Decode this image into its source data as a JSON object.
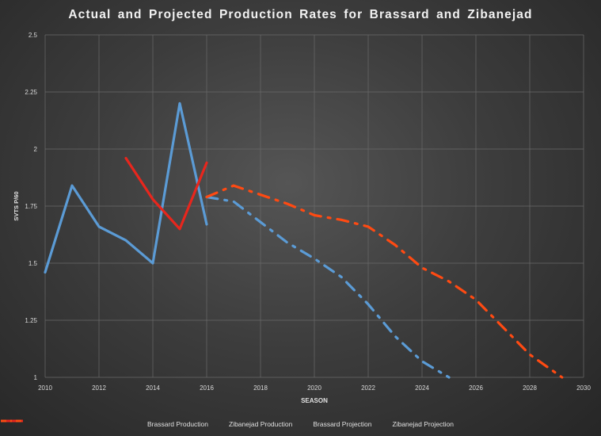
{
  "chart_data": {
    "type": "line",
    "title": "Actual and Projected Production Rates for Brassard and Zibanejad",
    "xlabel": "SEASON",
    "ylabel": "SVTS P/60",
    "xlim": [
      2010,
      2030
    ],
    "ylim": [
      1,
      2.5
    ],
    "xticks": [
      "2010",
      "2012",
      "2014",
      "2016",
      "2018",
      "2020",
      "2022",
      "2024",
      "2026",
      "2028",
      "2030"
    ],
    "yticks": [
      "1",
      "1.25",
      "1.5",
      "1.75",
      "2",
      "2.25",
      "2.5"
    ],
    "grid": true,
    "legend_position": "bottom",
    "series": [
      {
        "name": "Brassard Production",
        "color": "#5b9bd5",
        "style": "solid",
        "x": [
          2010,
          2011,
          2012,
          2013,
          2014,
          2015,
          2016
        ],
        "y": [
          1.46,
          1.84,
          1.66,
          1.6,
          1.5,
          2.2,
          1.67
        ]
      },
      {
        "name": "Zibanejad Production",
        "color": "#e8261d",
        "style": "solid",
        "x": [
          2013,
          2014,
          2015,
          2016
        ],
        "y": [
          1.96,
          1.78,
          1.65,
          1.94
        ]
      },
      {
        "name": "Brassard Projection",
        "color": "#5b9bd5",
        "style": "dashdot",
        "x": [
          2016,
          2017,
          2018,
          2019,
          2020,
          2021,
          2022,
          2023,
          2024,
          2025
        ],
        "y": [
          1.79,
          1.77,
          1.68,
          1.59,
          1.52,
          1.44,
          1.32,
          1.18,
          1.07,
          1.0
        ]
      },
      {
        "name": "Zibanejad Projection",
        "color": "#ff4a12",
        "style": "dashdot",
        "x": [
          2016,
          2017,
          2018,
          2019,
          2020,
          2021,
          2022,
          2023,
          2024,
          2025,
          2026,
          2027,
          2028,
          2029.2
        ],
        "y": [
          1.79,
          1.84,
          1.8,
          1.76,
          1.71,
          1.69,
          1.66,
          1.58,
          1.48,
          1.42,
          1.34,
          1.22,
          1.1,
          1.0
        ]
      }
    ]
  }
}
